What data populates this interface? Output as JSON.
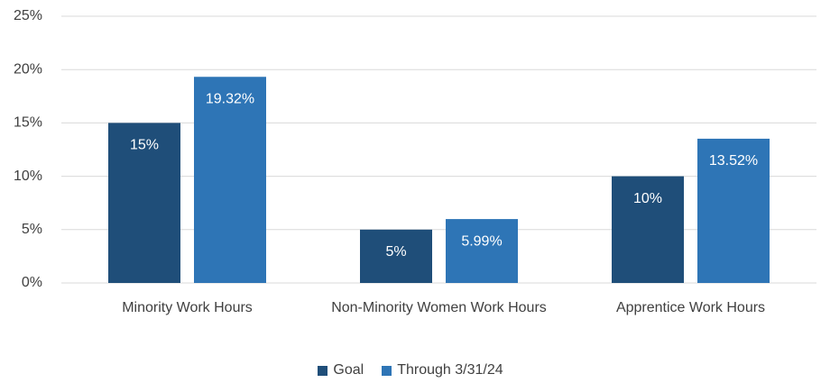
{
  "chart_data": {
    "type": "bar",
    "categories": [
      "Minority Work Hours",
      "Non-Minority Women Work Hours",
      "Apprentice Work Hours"
    ],
    "series": [
      {
        "name": "Goal",
        "color": "#1f4e79",
        "values": [
          15,
          5,
          10
        ],
        "value_labels": [
          "15%",
          "5%",
          "10%"
        ]
      },
      {
        "name": "Through 3/31/24",
        "color": "#2e75b6",
        "values": [
          19.32,
          5.99,
          13.52
        ],
        "value_labels": [
          "19.32%",
          "5.99%",
          "13.52%"
        ]
      }
    ],
    "ylim": [
      0,
      25
    ],
    "yticks": [
      {
        "value": 0,
        "label": "0%"
      },
      {
        "value": 5,
        "label": "5%"
      },
      {
        "value": 10,
        "label": "10%"
      },
      {
        "value": 15,
        "label": "15%"
      },
      {
        "value": 20,
        "label": "20%"
      },
      {
        "value": 25,
        "label": "25%"
      }
    ],
    "grid": true,
    "legend": "bottom"
  }
}
